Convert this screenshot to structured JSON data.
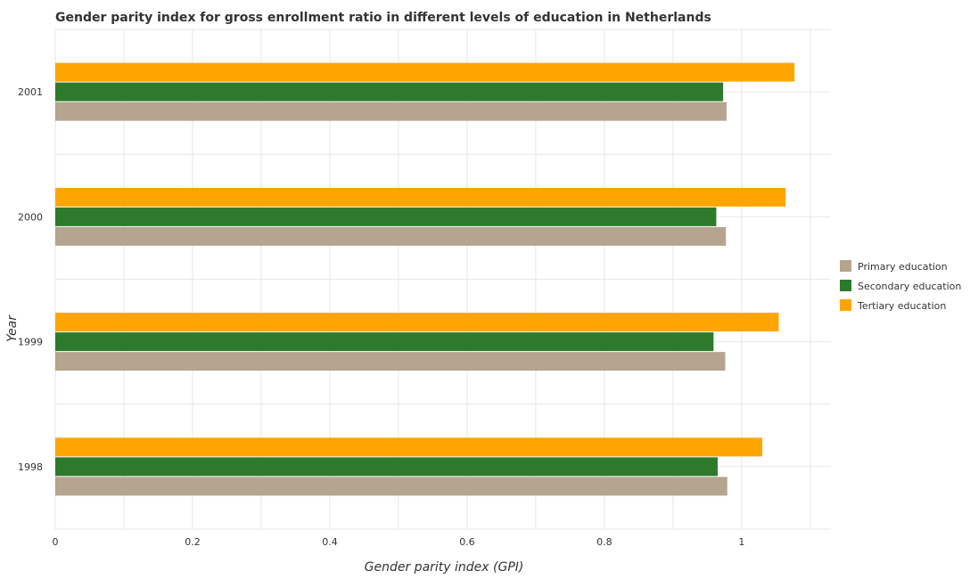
{
  "chart_data": {
    "type": "bar",
    "orientation": "horizontal",
    "title": "Gender parity index for gross enrollment ratio in different levels of education in Netherlands",
    "xlabel": "Gender parity index (GPI)",
    "ylabel": "Year",
    "categories": [
      "1998",
      "1999",
      "2000",
      "2001"
    ],
    "xlim": [
      0,
      1.13
    ],
    "xticks": [
      "0",
      "0.2",
      "0.4",
      "0.6",
      "0.8",
      "1"
    ],
    "grid": true,
    "legend_position": "right",
    "series": [
      {
        "name": "Primary education",
        "color": "#b5a48e",
        "values": [
          0.979,
          0.976,
          0.977,
          0.978
        ]
      },
      {
        "name": "Secondary education",
        "color": "#2d7a2d",
        "values": [
          0.965,
          0.959,
          0.963,
          0.973
        ]
      },
      {
        "name": "Tertiary education",
        "color": "#ffa500",
        "values": [
          1.03,
          1.054,
          1.064,
          1.077
        ]
      }
    ]
  }
}
